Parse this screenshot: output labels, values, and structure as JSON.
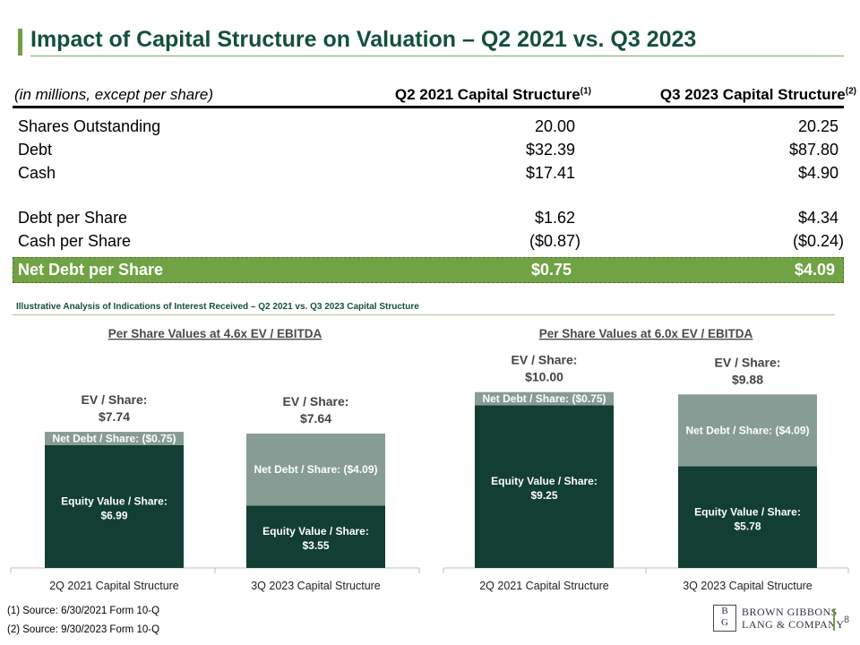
{
  "title": "Impact of Capital Structure on Valuation – Q2 2021 vs. Q3 2023",
  "table": {
    "header_label": "(in millions, except per share)",
    "col1": {
      "label": "Q2 2021 Capital Structure",
      "note": "(1)"
    },
    "col2": {
      "label": "Q3 2023 Capital Structure",
      "note": "(2)"
    },
    "rows": [
      {
        "label": "Shares Outstanding",
        "v1": "20.00",
        "v2": "20.25"
      },
      {
        "label": "Debt",
        "v1": "$32.39",
        "v2": "$87.80"
      },
      {
        "label": "Cash",
        "v1": "$17.41",
        "v2": "$4.90"
      },
      {
        "label": "Debt per Share",
        "v1": "$1.62",
        "v2": "$4.34"
      },
      {
        "label": "Cash per Share",
        "v1": "($0.87)",
        "v2": "($0.24)"
      }
    ],
    "net_row": {
      "label": "Net Debt per Share",
      "v1": "$0.75",
      "v2": "$4.09"
    }
  },
  "subtitle": "Illustrative Analysis of Indications of Interest Received – Q2 2021 vs. Q3 2023 Capital Structure",
  "chart_data": [
    {
      "type": "bar",
      "stacked": true,
      "title": "Per Share Values at 4.6x EV / EBITDA",
      "categories": [
        "2Q 2021 Capital Structure",
        "3Q 2023 Capital Structure"
      ],
      "series": [
        {
          "name": "Equity Value / Share",
          "values": [
            6.99,
            3.55
          ],
          "labels": [
            "$6.99",
            "$3.55"
          ],
          "color": "#123e34"
        },
        {
          "name": "Net Debt / Share",
          "values": [
            0.75,
            4.09
          ],
          "labels": [
            "($0.75)",
            "($4.09)"
          ],
          "color": "#879c94"
        }
      ],
      "totals": [
        7.74,
        7.64
      ],
      "total_labels": [
        "$7.74",
        "$7.64"
      ],
      "total_label_prefix": "EV / Share:",
      "ylim": [
        0,
        10.5
      ]
    },
    {
      "type": "bar",
      "stacked": true,
      "title": "Per Share Values at 6.0x EV / EBITDA",
      "categories": [
        "2Q 2021 Capital Structure",
        "3Q 2023 Capital Structure"
      ],
      "series": [
        {
          "name": "Equity Value / Share",
          "values": [
            9.25,
            5.78
          ],
          "labels": [
            "$9.25",
            "$5.78"
          ],
          "color": "#123e34"
        },
        {
          "name": "Net Debt / Share",
          "values": [
            0.75,
            4.09
          ],
          "labels": [
            "($0.75)",
            "($4.09)"
          ],
          "color": "#879c94"
        }
      ],
      "totals": [
        10.0,
        9.88
      ],
      "total_labels": [
        "$10.00",
        "$9.88"
      ],
      "total_label_prefix": "EV / Share:",
      "ylim": [
        0,
        10.5
      ]
    }
  ],
  "footnotes": [
    "(1) Source: 6/30/2021 Form 10-Q",
    "(2) Source: 9/30/2023 Form 10-Q"
  ],
  "page_number": "8",
  "logo": {
    "monogram_top": "B",
    "monogram_bottom": "G",
    "line1": "BROWN GIBBONS",
    "line2": "LANG & COMPANY"
  },
  "colors": {
    "accent": "#70a040",
    "title": "#14503c",
    "equity": "#123e34",
    "net_debt": "#879c94",
    "net_row": "#71a244"
  }
}
